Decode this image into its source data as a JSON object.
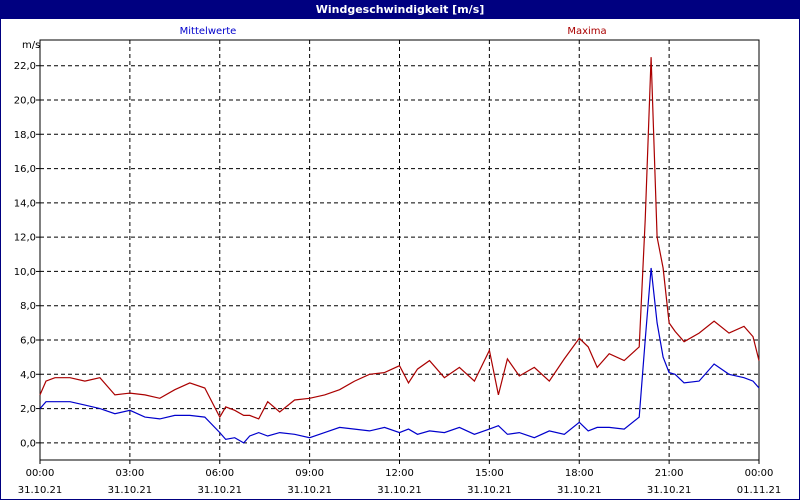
{
  "window": {
    "title": "Windgeschwindigkeit [m/s]"
  },
  "colors": {
    "mittel": "#0000cc",
    "maxima": "#aa0000",
    "titlebar": "#000080",
    "grid": "#000000"
  },
  "chart_data": {
    "type": "line",
    "title": "Windgeschwindigkeit [m/s]",
    "ylabel": "m/s",
    "ylim": [
      -1.0,
      23.5
    ],
    "xlim_hours": [
      0,
      24
    ],
    "grid": true,
    "y_ticks": [
      "0,0",
      "2,0",
      "4,0",
      "6,0",
      "8,0",
      "10,0",
      "12,0",
      "14,0",
      "16,0",
      "18,0",
      "20,0",
      "22,0"
    ],
    "y_tick_values": [
      0,
      2,
      4,
      6,
      8,
      10,
      12,
      14,
      16,
      18,
      20,
      22
    ],
    "x_ticks": [
      {
        "time": "00:00",
        "date": "31.10.21"
      },
      {
        "time": "03:00",
        "date": "31.10.21"
      },
      {
        "time": "06:00",
        "date": "31.10.21"
      },
      {
        "time": "09:00",
        "date": "31.10.21"
      },
      {
        "time": "12:00",
        "date": "31.10.21"
      },
      {
        "time": "15:00",
        "date": "31.10.21"
      },
      {
        "time": "18:00",
        "date": "31.10.21"
      },
      {
        "time": "21:00",
        "date": "31.10.21"
      },
      {
        "time": "00:00",
        "date": "01.11.21"
      }
    ],
    "series": [
      {
        "name": "Mittelwerte",
        "x": [
          0,
          0.2,
          0.5,
          1,
          1.5,
          2,
          2.5,
          3,
          3.5,
          4,
          4.5,
          5,
          5.5,
          6,
          6.2,
          6.5,
          6.8,
          7,
          7.3,
          7.6,
          8,
          8.5,
          9,
          9.5,
          10,
          10.5,
          11,
          11.5,
          12,
          12.3,
          12.6,
          13,
          13.5,
          14,
          14.5,
          15,
          15.3,
          15.6,
          16,
          16.5,
          17,
          17.5,
          18,
          18.3,
          18.6,
          19,
          19.5,
          20,
          20.2,
          20.4,
          20.6,
          20.8,
          21,
          21.2,
          21.5,
          22,
          22.5,
          23,
          23.5,
          23.8,
          24
        ],
        "values": [
          2.0,
          2.4,
          2.4,
          2.4,
          2.2,
          2.0,
          1.7,
          1.9,
          1.5,
          1.4,
          1.6,
          1.6,
          1.5,
          0.6,
          0.2,
          0.3,
          0.0,
          0.4,
          0.6,
          0.4,
          0.6,
          0.5,
          0.3,
          0.6,
          0.9,
          0.8,
          0.7,
          0.9,
          0.6,
          0.8,
          0.5,
          0.7,
          0.6,
          0.9,
          0.5,
          0.8,
          1.0,
          0.5,
          0.6,
          0.3,
          0.7,
          0.5,
          1.2,
          0.7,
          0.9,
          0.9,
          0.8,
          1.5,
          6.0,
          10.2,
          7.0,
          5.0,
          4.1,
          4.0,
          3.5,
          3.6,
          4.6,
          4.0,
          3.8,
          3.6,
          3.2
        ]
      },
      {
        "name": "Maxima",
        "x": [
          0,
          0.2,
          0.5,
          1,
          1.5,
          2,
          2.5,
          3,
          3.5,
          4,
          4.5,
          5,
          5.5,
          6,
          6.2,
          6.5,
          6.8,
          7,
          7.3,
          7.6,
          8,
          8.5,
          9,
          9.5,
          10,
          10.5,
          11,
          11.5,
          12,
          12.3,
          12.6,
          13,
          13.5,
          14,
          14.5,
          15,
          15.3,
          15.6,
          16,
          16.5,
          17,
          17.5,
          18,
          18.3,
          18.6,
          19,
          19.5,
          20,
          20.2,
          20.4,
          20.6,
          20.8,
          21,
          21.2,
          21.5,
          22,
          22.5,
          23,
          23.5,
          23.8,
          24
        ],
        "values": [
          2.8,
          3.6,
          3.8,
          3.8,
          3.6,
          3.8,
          2.8,
          2.9,
          2.8,
          2.6,
          3.1,
          3.5,
          3.2,
          1.5,
          2.1,
          1.9,
          1.6,
          1.6,
          1.4,
          2.4,
          1.8,
          2.5,
          2.6,
          2.8,
          3.1,
          3.6,
          4.0,
          4.1,
          4.5,
          3.5,
          4.3,
          4.8,
          3.8,
          4.4,
          3.6,
          5.4,
          2.8,
          4.9,
          3.9,
          4.4,
          3.6,
          4.9,
          6.1,
          5.6,
          4.4,
          5.2,
          4.8,
          5.6,
          13.0,
          22.5,
          12.0,
          10.2,
          7.0,
          6.5,
          5.9,
          6.4,
          7.1,
          6.4,
          6.8,
          6.2,
          4.8
        ]
      }
    ],
    "legend": [
      "Mittelwerte",
      "Maxima"
    ]
  }
}
